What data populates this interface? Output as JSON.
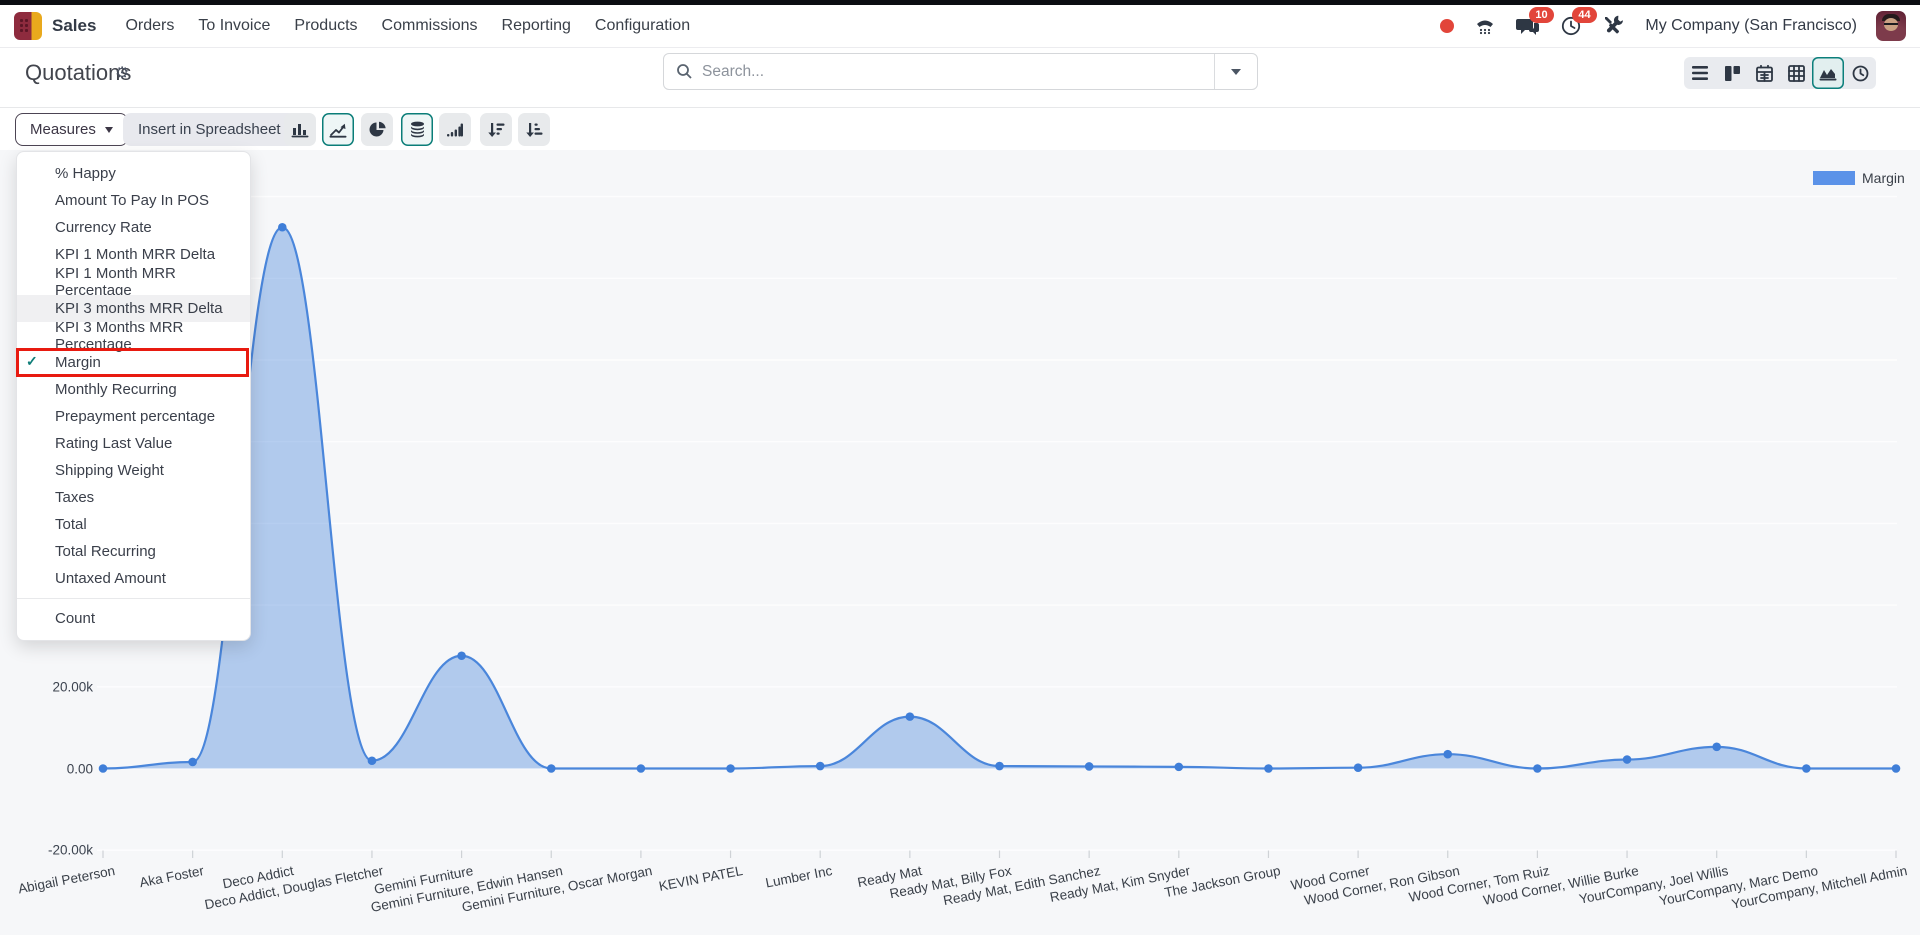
{
  "topbar": {
    "app_name": "Sales",
    "menu_items": [
      "Orders",
      "To Invoice",
      "Products",
      "Commissions",
      "Reporting",
      "Configuration"
    ],
    "messages_badge": "10",
    "activities_badge": "44",
    "company": "My Company (San Francisco)"
  },
  "control_panel": {
    "title": "Quotations",
    "search_placeholder": "Search...",
    "views": [
      "list",
      "kanban",
      "calendar",
      "pivot",
      "graph",
      "activity"
    ],
    "active_view": "graph"
  },
  "toolbar": {
    "measures_label": "Measures",
    "insert_label": "Insert in Spreadsheet",
    "chart_types": [
      "bar",
      "line",
      "pie"
    ],
    "active_chart_type": "line",
    "stacked_active": true,
    "cumulative_active": false
  },
  "measures_menu": {
    "items": [
      {
        "label": "% Happy"
      },
      {
        "label": "Amount To Pay In POS"
      },
      {
        "label": "Currency Rate"
      },
      {
        "label": "KPI 1 Month MRR Delta"
      },
      {
        "label": "KPI 1 Month MRR Percentage"
      },
      {
        "label": "KPI 3 months MRR Delta",
        "hovered": true
      },
      {
        "label": "KPI 3 Months MRR Percentage"
      },
      {
        "label": "Margin",
        "checked": true,
        "highlighted": true
      },
      {
        "label": "Monthly Recurring"
      },
      {
        "label": "Prepayment percentage"
      },
      {
        "label": "Rating Last Value"
      },
      {
        "label": "Shipping Weight"
      },
      {
        "label": "Taxes"
      },
      {
        "label": "Total"
      },
      {
        "label": "Total Recurring"
      },
      {
        "label": "Untaxed Amount"
      }
    ],
    "footer_item": {
      "label": "Count"
    }
  },
  "chart_data": {
    "type": "area",
    "title": "",
    "xlabel": "",
    "ylabel": "",
    "categories": [
      "Abigail Peterson",
      "Aka Foster",
      "Deco Addict",
      "Deco Addict, Douglas Fletcher",
      "Gemini Furniture",
      "Gemini Furniture, Edwin Hansen",
      "Gemini Furniture, Oscar Morgan",
      "KEVIN PATEL",
      "Lumber Inc",
      "Ready Mat",
      "Ready Mat, Billy Fox",
      "Ready Mat, Edith Sanchez",
      "Ready Mat, Kim Snyder",
      "The Jackson Group",
      "Wood Corner",
      "Wood Corner, Ron Gibson",
      "Wood Corner, Tom Ruiz",
      "Wood Corner, Willie Burke",
      "YourCompany, Joel Willis",
      "YourCompany, Marc Demo",
      "YourCompany, Mitchell Admin"
    ],
    "series": [
      {
        "name": "Margin",
        "values": [
          0,
          1600,
          132500,
          1900,
          27600,
          0,
          0,
          0,
          600,
          12700,
          600,
          500,
          400,
          0,
          200,
          3500,
          0,
          2200,
          5300,
          0,
          0
        ]
      }
    ],
    "ylim": [
      -20000,
      140000
    ],
    "ytick_step": 20000,
    "ytick_labels": [
      "140.00k",
      "120.00k",
      "100.00k",
      "80.00k",
      "60.00k",
      "40.00k",
      "20.00k",
      "0.00",
      "-20.00k"
    ],
    "grid": true,
    "legend_position": "top-right",
    "colors": {
      "line": "#4a86db",
      "dot": "#3f7ed8",
      "fill": "rgba(74,134,219,0.40)",
      "legend_swatch": "#5b92e8",
      "gridline": "#fdfdfe",
      "accent_teal": "#0c7f7b",
      "highlight_red": "#e81a10",
      "badge_red": "#e2453a"
    }
  }
}
